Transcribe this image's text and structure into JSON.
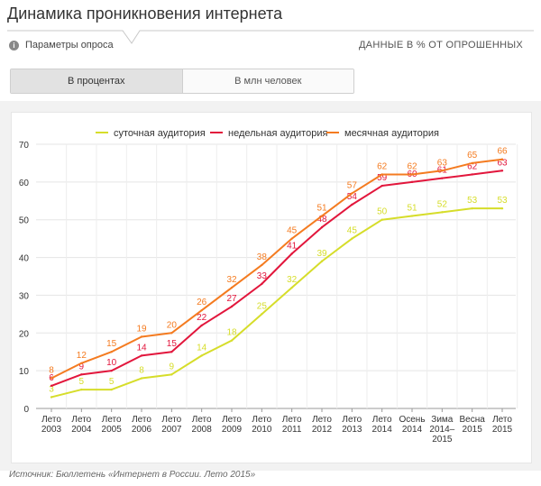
{
  "page": {
    "title": "Динамика проникновения интернета",
    "params_label": "Параметры опроса",
    "info_icon": "info-icon",
    "units_label": "ДАННЫЕ В % ОТ ОПРОШЕННЫХ",
    "tabs": [
      {
        "label": "В процентах",
        "active": true
      },
      {
        "label": "В млн человек",
        "active": false
      }
    ],
    "source": "Источник: Бюллетень «Интернет в России. Лето 2015»"
  },
  "chart_data": {
    "type": "line",
    "categories": [
      [
        "Лето",
        "2003"
      ],
      [
        "Лето",
        "2004"
      ],
      [
        "Лето",
        "2005"
      ],
      [
        "Лето",
        "2006"
      ],
      [
        "Лето",
        "2007"
      ],
      [
        "Лето",
        "2008"
      ],
      [
        "Лето",
        "2009"
      ],
      [
        "Лето",
        "2010"
      ],
      [
        "Лето",
        "2011"
      ],
      [
        "Лето",
        "2012"
      ],
      [
        "Лето",
        "2013"
      ],
      [
        "Лето",
        "2014"
      ],
      [
        "Осень",
        "2014"
      ],
      [
        "Зима",
        "2014–",
        "2015"
      ],
      [
        "Весна",
        "2015"
      ],
      [
        "Лето",
        "2015"
      ]
    ],
    "ylim": [
      0,
      70
    ],
    "yticks": [
      0,
      10,
      20,
      30,
      40,
      50,
      60,
      70
    ],
    "grid": true,
    "legend_position": "top",
    "series": [
      {
        "name": "суточная аудитория",
        "color": "#d6dd2a",
        "values": [
          3,
          5,
          5,
          8,
          9,
          14,
          18,
          25,
          32,
          39,
          45,
          50,
          51,
          52,
          53,
          53
        ],
        "labels": [
          3,
          5,
          5,
          8,
          9,
          14,
          18,
          25,
          32,
          39,
          45,
          50,
          51,
          52,
          53,
          53
        ]
      },
      {
        "name": "недельная аудитория",
        "color": "#e2163c",
        "values": [
          6,
          9,
          10,
          14,
          15,
          22,
          27,
          33,
          41,
          48,
          54,
          59,
          60,
          61,
          62,
          63
        ],
        "labels": [
          6,
          9,
          10,
          14,
          15,
          22,
          27,
          33,
          41,
          48,
          54,
          59,
          60,
          61,
          62,
          63
        ]
      },
      {
        "name": "месячная аудитория",
        "color": "#f47b20",
        "values": [
          8,
          12,
          15,
          19,
          20,
          26,
          32,
          38,
          45,
          51,
          57,
          62,
          62,
          63,
          65,
          66
        ],
        "labels": [
          8,
          12,
          15,
          19,
          20,
          26,
          32,
          38,
          45,
          51,
          57,
          62,
          62,
          63,
          65,
          66
        ]
      }
    ]
  }
}
